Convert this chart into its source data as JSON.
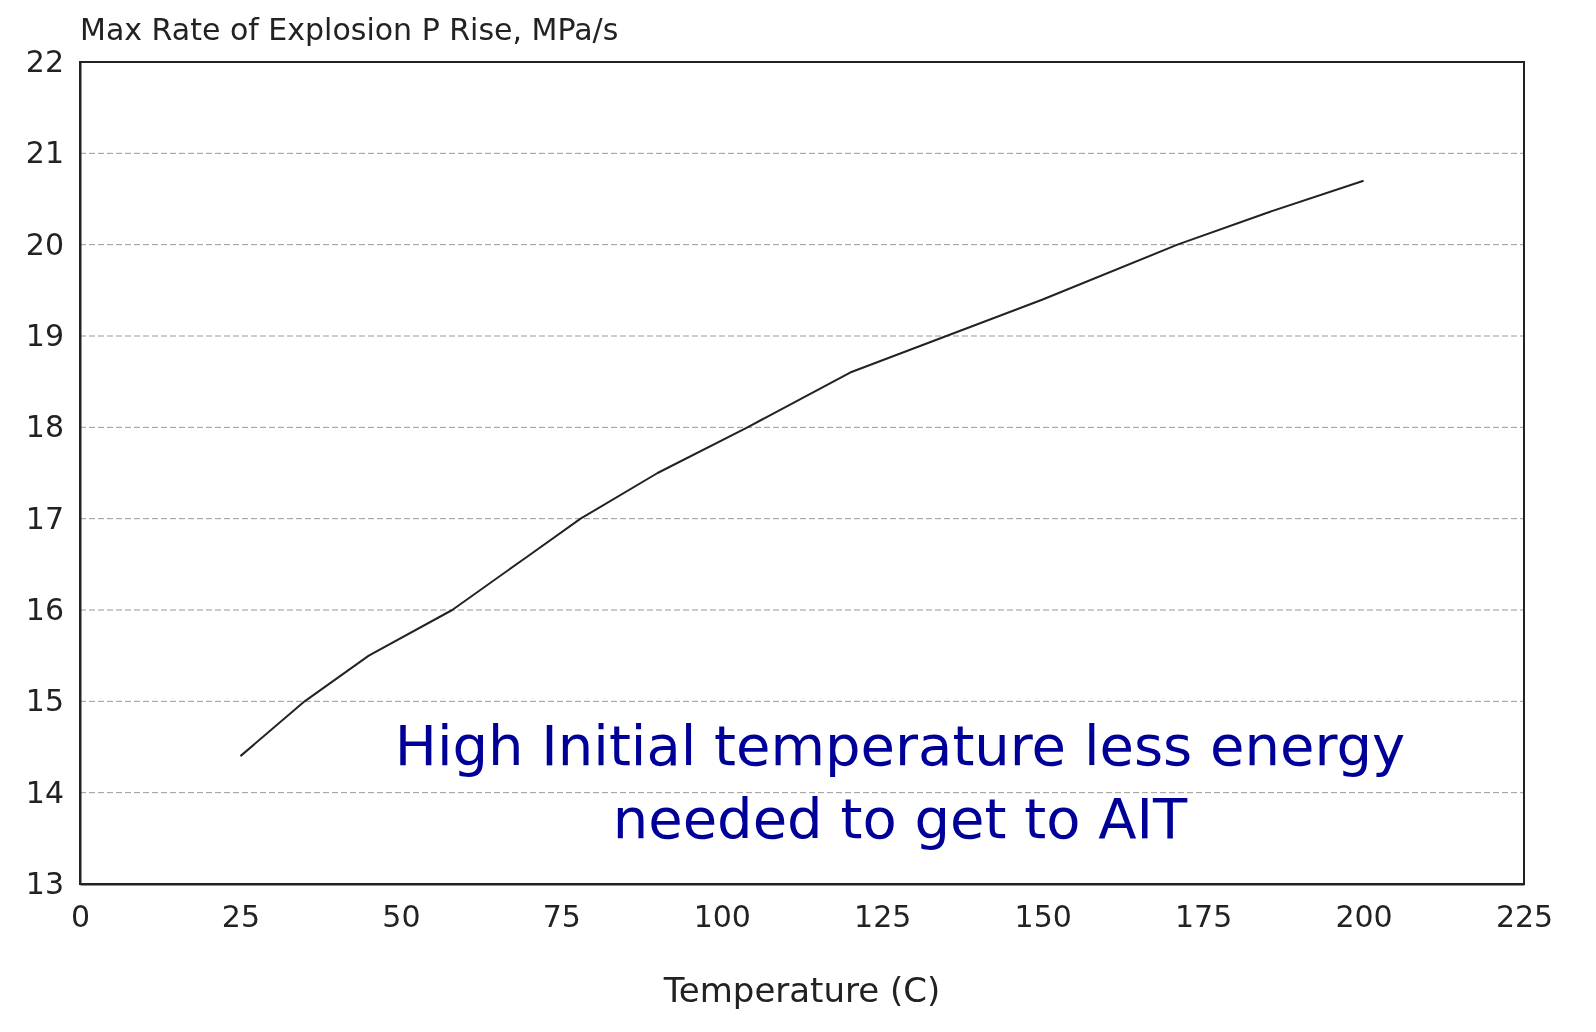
{
  "chart_data": {
    "type": "line",
    "xlabel": "Temperature (C)",
    "ylabel": "Max Rate of Explosion P Rise, MPa/s",
    "x": [
      25,
      35,
      45,
      58,
      70,
      78,
      90,
      104,
      120,
      135,
      150,
      171,
      185,
      200
    ],
    "series": [
      {
        "color": "#222222",
        "values": [
          14.4,
          15,
          15.5,
          16,
          16.6,
          17,
          17.5,
          18,
          18.6,
          19,
          19.4,
          20,
          20.35,
          20.7
        ]
      }
    ],
    "xlim": [
      0,
      225
    ],
    "xticks": [
      0,
      25,
      50,
      75,
      100,
      125,
      150,
      175,
      200,
      225
    ],
    "ylim": [
      13,
      22
    ],
    "yticks": [
      13,
      14,
      15,
      16,
      17,
      18,
      19,
      20,
      21,
      22
    ],
    "grid": "y",
    "marker": "none",
    "line_style": "solid",
    "annotations": [
      "High Initial temperature less energy\nneeded to get to AIT"
    ]
  }
}
